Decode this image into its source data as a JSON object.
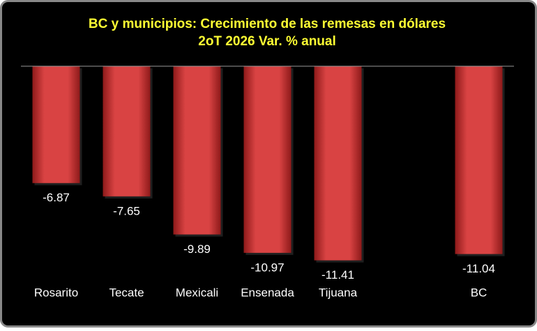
{
  "chart_data": {
    "type": "bar",
    "title": "BC y municipios: Crecimiento de las remesas en dólares",
    "subtitle": "2oT 2026 Var. % anual",
    "categories": [
      "Rosarito",
      "Tecate",
      "Mexicali",
      "Ensenada",
      "Tijuana",
      null,
      "BC"
    ],
    "values": [
      -6.87,
      -7.65,
      -9.89,
      -10.97,
      -11.41,
      null,
      -11.04
    ],
    "color": "#d83a3a",
    "ylim": [
      -12,
      0
    ]
  }
}
